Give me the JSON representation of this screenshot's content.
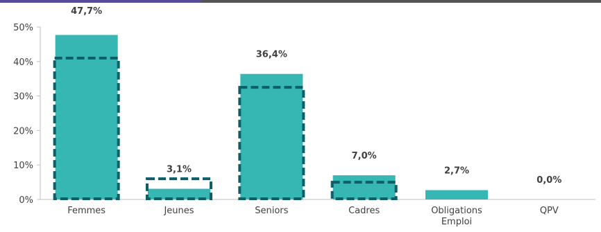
{
  "colors": {
    "bar": "#36b7b4",
    "dashed": "#0e5e68",
    "axis": "#bfbfbf",
    "accent_left": "#5a4a9c",
    "accent_right": "#555555"
  },
  "chart_data": {
    "type": "bar",
    "title": "",
    "xlabel": "",
    "ylabel": "",
    "ylim": [
      0,
      50
    ],
    "yticks": [
      "0%",
      "10%",
      "20%",
      "30%",
      "40%",
      "50%"
    ],
    "categories": [
      {
        "label": "Femmes",
        "lines": [
          "Femmes"
        ]
      },
      {
        "label": "Jeunes",
        "lines": [
          "Jeunes"
        ]
      },
      {
        "label": "Seniors",
        "lines": [
          "Seniors"
        ]
      },
      {
        "label": "Cadres",
        "lines": [
          "Cadres"
        ]
      },
      {
        "label": "Obligations Emploi",
        "lines": [
          "Obligations",
          "Emploi"
        ]
      },
      {
        "label": "QPV",
        "lines": [
          "QPV"
        ]
      }
    ],
    "series": [
      {
        "type": "bar",
        "values": [
          47.7,
          3.1,
          36.4,
          7.0,
          2.7,
          0.0
        ],
        "data_labels": [
          "47,7%",
          "3,1%",
          "36,4%",
          "7,0%",
          "2,7%",
          "0,0%"
        ]
      },
      {
        "type": "dashed-outline",
        "values": [
          41.0,
          6.0,
          32.5,
          5.0,
          null,
          null
        ]
      }
    ],
    "grid": false,
    "legend": "none"
  }
}
